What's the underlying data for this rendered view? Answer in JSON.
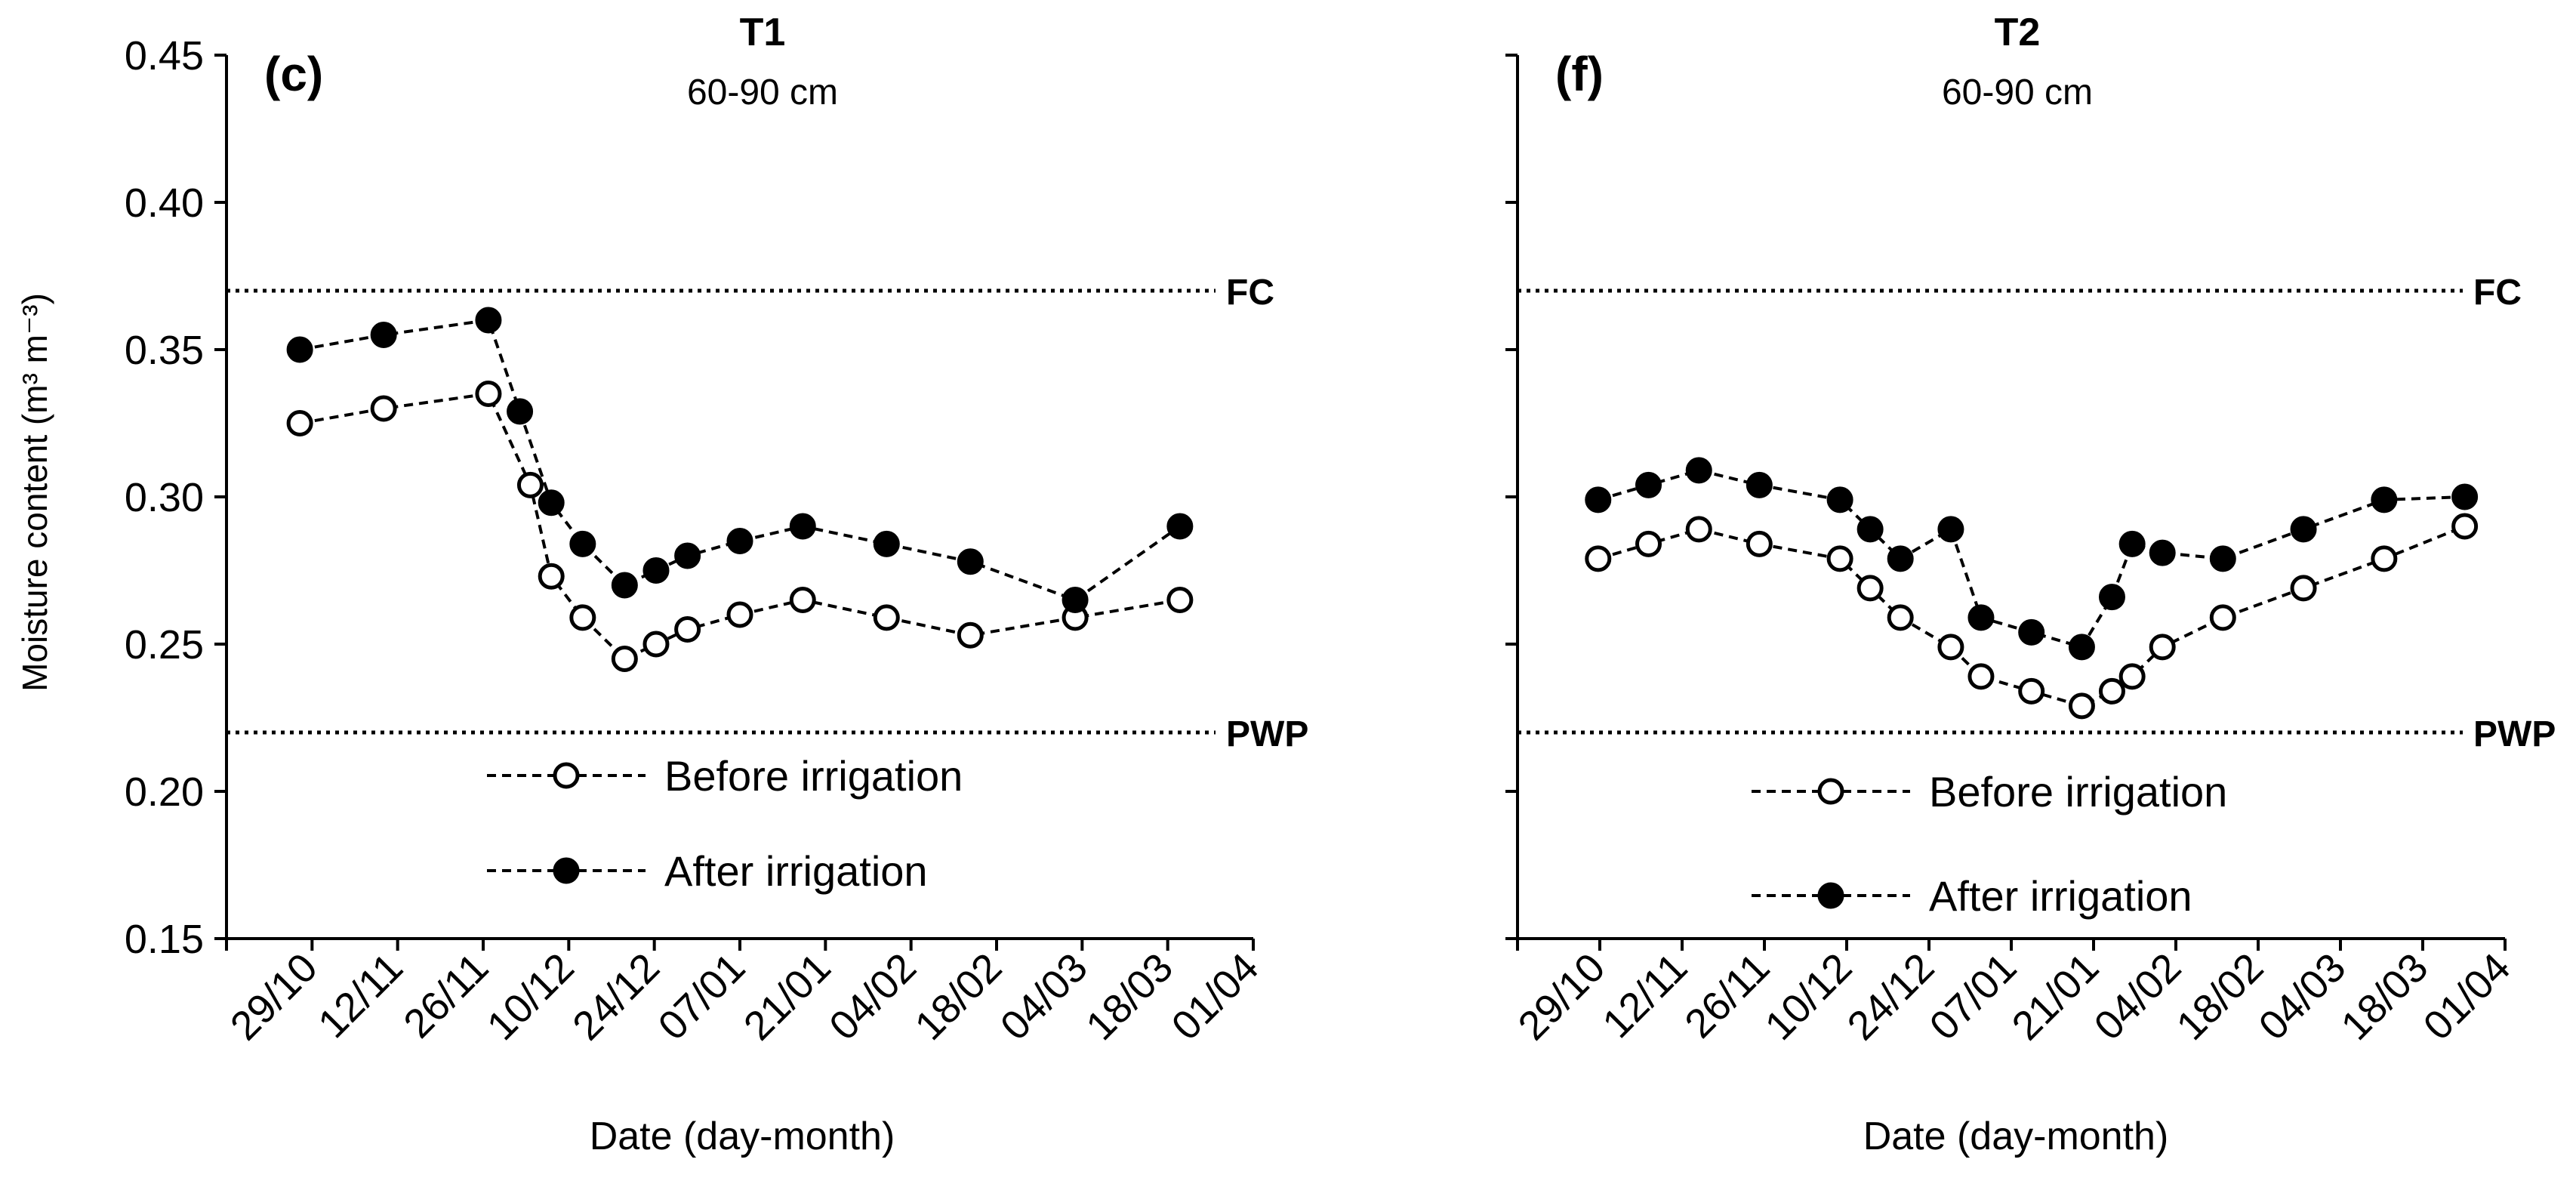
{
  "figure": {
    "y_axis_label": "Moisture content (m³ m⁻³)",
    "x_axis_label": "Date (day-month)"
  },
  "chart_data": [
    {
      "type": "line",
      "panel_label": "(c)",
      "title": "T1",
      "subtitle": "60-90 cm",
      "xlabel": "Date (day-month)",
      "ylabel": "Moisture content (m³ m⁻³)",
      "ylim": [
        0.15,
        0.45
      ],
      "yticks": [
        "0.15",
        "0.20",
        "0.25",
        "0.30",
        "0.35",
        "0.40",
        "0.45"
      ],
      "xlim": [
        0,
        98
      ],
      "x_categories": [
        "29/10",
        "12/11",
        "26/11",
        "10/12",
        "24/12",
        "07/01",
        "21/01",
        "04/02",
        "18/02",
        "04/03",
        "18/03",
        "01/04"
      ],
      "reference_lines": [
        {
          "label": "FC",
          "value": 0.37
        },
        {
          "label": "PWP",
          "value": 0.22
        }
      ],
      "legend": [
        "Before irrigation",
        "After irrigation"
      ],
      "series": [
        {
          "name": "Before irrigation",
          "marker": "open-circle",
          "x": [
            7,
            15,
            25,
            29,
            31,
            34,
            38,
            41,
            44,
            49,
            55,
            63,
            71,
            81,
            91
          ],
          "y": [
            0.325,
            0.33,
            0.335,
            0.304,
            0.273,
            0.259,
            0.245,
            0.25,
            0.255,
            0.26,
            0.265,
            0.259,
            0.253,
            0.259,
            0.265
          ]
        },
        {
          "name": "After irrigation",
          "marker": "filled-circle",
          "x": [
            7,
            15,
            25,
            28,
            31,
            34,
            38,
            41,
            44,
            49,
            55,
            63,
            71,
            81,
            91
          ],
          "y": [
            0.35,
            0.355,
            0.36,
            0.329,
            0.298,
            0.284,
            0.27,
            0.275,
            0.28,
            0.285,
            0.29,
            0.284,
            0.278,
            0.265,
            0.29
          ]
        }
      ]
    },
    {
      "type": "line",
      "panel_label": "(f)",
      "title": "T2",
      "subtitle": "60-90 cm",
      "xlabel": "Date (day-month)",
      "ylabel": "Moisture content (m³ m⁻³)",
      "ylim": [
        0.15,
        0.45
      ],
      "yticks": [
        "0.15",
        "0.20",
        "0.25",
        "0.30",
        "0.35",
        "0.40",
        "0.45"
      ],
      "xlim": [
        0,
        98
      ],
      "x_categories": [
        "29/10",
        "12/11",
        "26/11",
        "10/12",
        "24/12",
        "07/01",
        "21/01",
        "04/02",
        "18/02",
        "04/03",
        "18/03",
        "01/04"
      ],
      "reference_lines": [
        {
          "label": "FC",
          "value": 0.37
        },
        {
          "label": "PWP",
          "value": 0.22
        }
      ],
      "legend": [
        "Before irrigation",
        "After irrigation"
      ],
      "series": [
        {
          "name": "Before irrigation",
          "marker": "open-circle",
          "x": [
            8,
            13,
            18,
            24,
            32,
            35,
            38,
            43,
            46,
            51,
            56,
            59,
            61,
            64,
            70,
            78,
            86,
            94
          ],
          "y": [
            0.279,
            0.284,
            0.289,
            0.284,
            0.279,
            0.269,
            0.259,
            0.249,
            0.239,
            0.234,
            0.229,
            0.234,
            0.239,
            0.249,
            0.259,
            0.269,
            0.279,
            0.29
          ]
        },
        {
          "name": "After irrigation",
          "marker": "filled-circle",
          "x": [
            8,
            13,
            18,
            24,
            32,
            35,
            38,
            43,
            46,
            51,
            56,
            59,
            61,
            64,
            70,
            78,
            86,
            94
          ],
          "y": [
            0.299,
            0.304,
            0.309,
            0.304,
            0.299,
            0.289,
            0.279,
            0.289,
            0.259,
            0.254,
            0.249,
            0.266,
            0.284,
            0.281,
            0.279,
            0.289,
            0.299,
            0.3
          ]
        }
      ]
    }
  ]
}
